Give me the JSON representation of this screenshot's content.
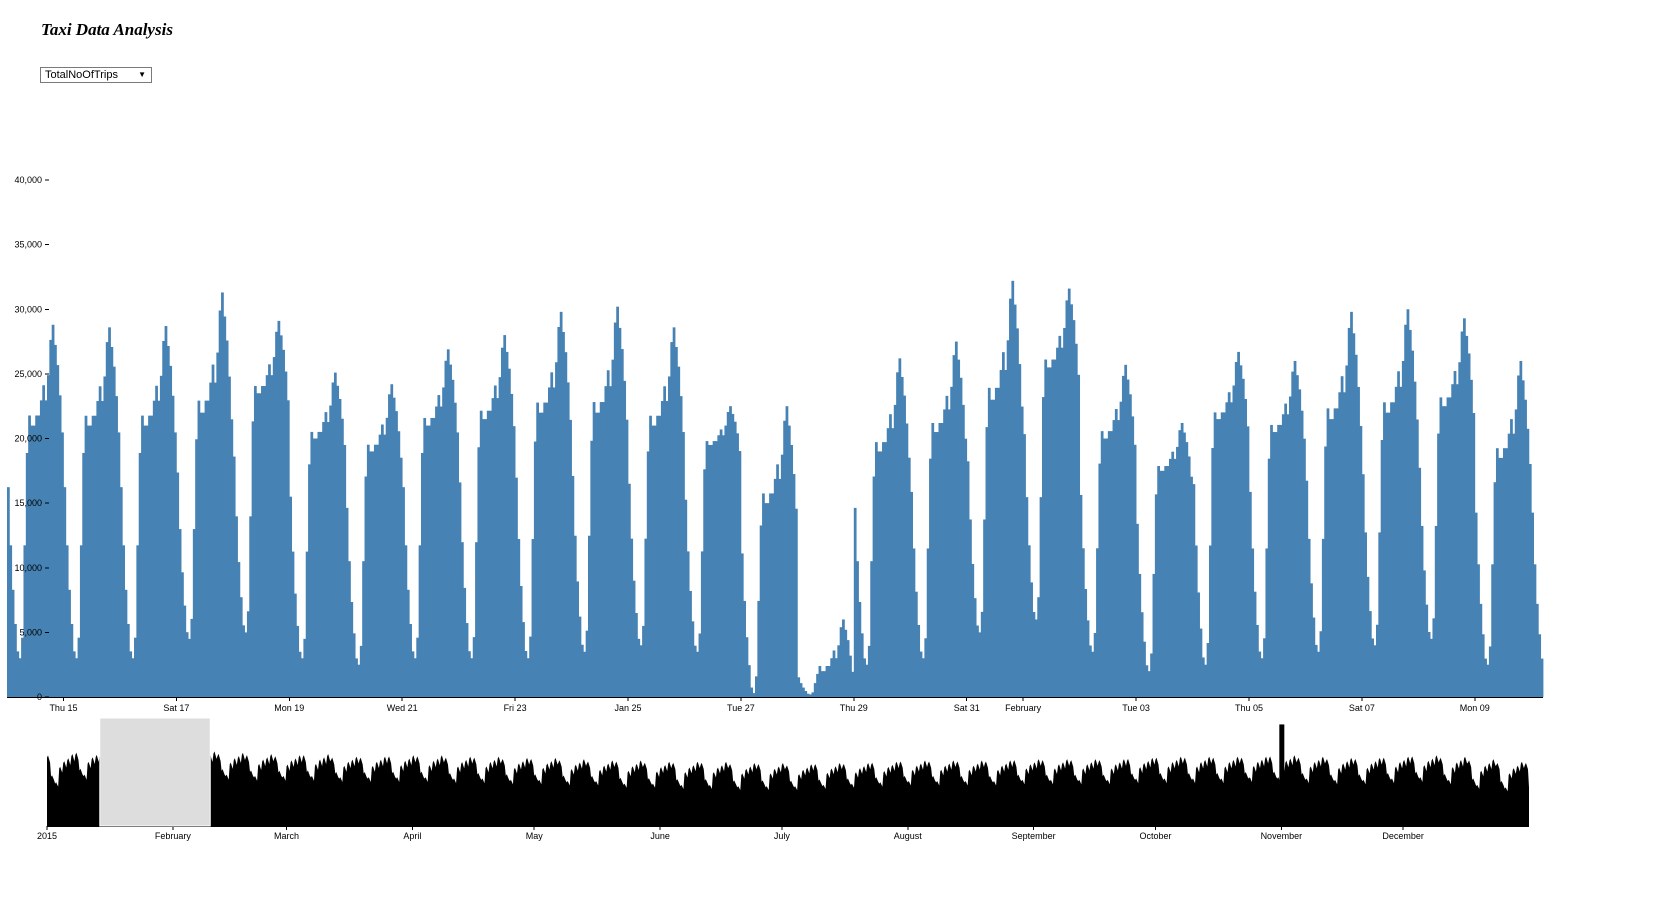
{
  "page": {
    "title": "Taxi Data Analysis"
  },
  "controls": {
    "metric_selected": "TotalNoOfTrips"
  },
  "colors": {
    "focus_bar": "#4682b4",
    "context_area": "#000000",
    "brush": "#dddddd"
  },
  "chart_data": [
    {
      "type": "bar",
      "role": "focus",
      "ylim": [
        0,
        42000
      ],
      "yticks": [
        0,
        5000,
        10000,
        15000,
        20000,
        25000,
        30000,
        35000,
        40000
      ],
      "ytick_labels": [
        "0",
        "5,000",
        "10,000",
        "15,000",
        "20,000",
        "25,000",
        "30,000",
        "35,000",
        "40,000"
      ],
      "xdomain": [
        "2015-01-14T00:00",
        "2015-02-10T05:00"
      ],
      "xticks": [
        "2015-01-15",
        "2015-01-17",
        "2015-01-19",
        "2015-01-21",
        "2015-01-23",
        "2015-01-25",
        "2015-01-27",
        "2015-01-29",
        "2015-01-31",
        "2015-02-01",
        "2015-02-03",
        "2015-02-05",
        "2015-02-07",
        "2015-02-09"
      ],
      "xtick_labels": [
        "Thu 15",
        "Sat 17",
        "Mon 19",
        "Wed 21",
        "Fri 23",
        "Jan 25",
        "Tue 27",
        "Thu 29",
        "Sat 31",
        "February",
        "Tue 03",
        "Thu 05",
        "Sat 07",
        "Mon 09"
      ],
      "hourly_start": "2015-01-14T00:00",
      "daily_peaks": [
        28800,
        28600,
        28700,
        31300,
        29100,
        25100,
        24200,
        26900,
        28000,
        29800,
        30200,
        28600,
        22500,
        22500,
        6000,
        26200,
        27500,
        32200,
        31600,
        25700,
        21200,
        26700,
        26000,
        29800,
        30000,
        29300,
        26000
      ],
      "daily_plateaus": [
        21000,
        21000,
        21000,
        22000,
        23500,
        20000,
        19000,
        21000,
        21500,
        22000,
        22000,
        21000,
        19500,
        15000,
        2000,
        19000,
        20500,
        23000,
        25500,
        20000,
        17500,
        21500,
        20500,
        21500,
        22000,
        22500,
        18500
      ],
      "daily_troughs": [
        3000,
        3000,
        3000,
        4500,
        5000,
        3000,
        2500,
        3000,
        3000,
        3000,
        3500,
        4000,
        3500,
        300,
        200,
        2500,
        3000,
        5000,
        6000,
        3500,
        2000,
        2500,
        3000,
        3500,
        4000,
        4500,
        2500
      ]
    },
    {
      "type": "area",
      "role": "context",
      "xdomain": [
        "2015-01-01",
        "2016-01-01"
      ],
      "xticks": [
        "2015-01-01",
        "2015-02-01",
        "2015-03-01",
        "2015-04-01",
        "2015-05-01",
        "2015-06-01",
        "2015-07-01",
        "2015-08-01",
        "2015-09-01",
        "2015-10-01",
        "2015-11-01",
        "2015-12-01"
      ],
      "xtick_labels": [
        "2015",
        "February",
        "March",
        "April",
        "May",
        "June",
        "July",
        "August",
        "September",
        "October",
        "November",
        "December"
      ],
      "brush": [
        "2015-01-14T00:00",
        "2015-02-10T05:00"
      ],
      "ylim": [
        0,
        42000
      ],
      "weekly_max": [
        28000,
        29000,
        30000,
        30000,
        28500,
        29000,
        28500,
        28000,
        27500,
        28000,
        27000,
        27000,
        27500,
        27500,
        27000,
        27000,
        26500,
        26500,
        26000,
        25500,
        25500,
        25000,
        25000,
        25000,
        24500,
        24500,
        24000,
        24500,
        24500,
        25000,
        25500,
        25500,
        25500,
        25500,
        26000,
        26000,
        26000,
        26000,
        26500,
        27000,
        27000,
        27000,
        27000,
        27500,
        27000,
        26500,
        26500,
        27000,
        27500,
        27000,
        26000,
        25000
      ],
      "weekly_min": [
        17000,
        20000,
        20500,
        20500,
        20000,
        20000,
        20000,
        19500,
        19500,
        19500,
        19000,
        19000,
        19000,
        19000,
        18500,
        18500,
        18000,
        18000,
        17500,
        17500,
        16500,
        16500,
        16000,
        16000,
        15500,
        15500,
        15500,
        16000,
        16500,
        17000,
        17500,
        17500,
        17500,
        17500,
        18000,
        18000,
        18000,
        18000,
        18500,
        18500,
        18500,
        18500,
        19000,
        19000,
        18500,
        18000,
        18000,
        18500,
        19000,
        18000,
        16000,
        15000
      ],
      "spike": {
        "date": "2015-11-01",
        "value": 39500
      }
    }
  ]
}
